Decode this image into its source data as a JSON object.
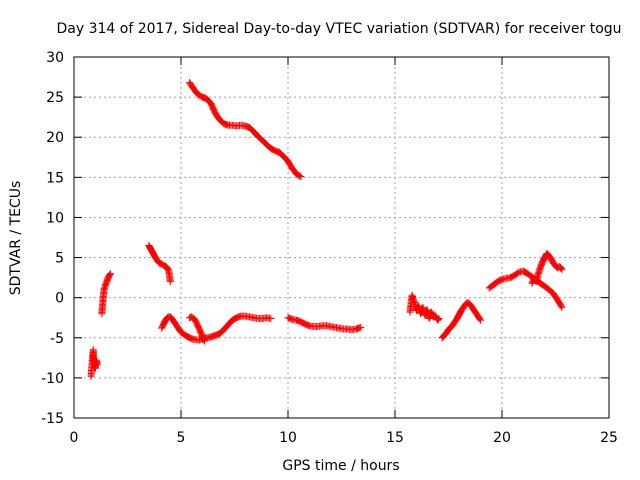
{
  "chart_data": {
    "type": "scatter",
    "title": "Day 314 of 2017, Sidereal Day-to-day VTEC variation (SDTVAR) for receiver togu",
    "xlabel": "GPS time / hours",
    "ylabel": "SDTVAR / TECUs",
    "xlim": [
      0,
      25
    ],
    "ylim": [
      -15,
      30
    ],
    "xticks": [
      0,
      5,
      10,
      15,
      20,
      25
    ],
    "yticks": [
      -15,
      -10,
      -5,
      0,
      5,
      10,
      15,
      20,
      25,
      30
    ],
    "grid": true,
    "marker": "+",
    "series_color": "#ff0000",
    "segments": [
      {
        "name": "seg-1",
        "x": [
          0.8,
          0.85,
          0.9,
          0.95,
          1.0,
          1.05,
          1.1
        ],
        "y": [
          -9.8,
          -8.0,
          -6.5,
          -8.5,
          -8.8,
          -7.8,
          -8.3
        ]
      },
      {
        "name": "seg-2",
        "x": [
          1.3,
          1.35,
          1.4,
          1.5,
          1.6,
          1.7
        ],
        "y": [
          -2.0,
          -0.5,
          1.0,
          1.8,
          2.5,
          3.0
        ]
      },
      {
        "name": "seg-3",
        "x": [
          3.5,
          3.6,
          3.7,
          3.8,
          3.9,
          4.0,
          4.1,
          4.2,
          4.3,
          4.4,
          4.45,
          4.5
        ],
        "y": [
          6.5,
          6.0,
          5.5,
          5.0,
          4.6,
          4.3,
          4.2,
          4.0,
          3.9,
          3.5,
          3.0,
          2.0
        ]
      },
      {
        "name": "seg-4",
        "x": [
          4.1,
          4.2,
          4.3,
          4.4,
          4.5,
          4.6,
          4.7,
          4.8,
          4.9,
          5.0,
          5.2,
          5.4,
          5.6,
          5.8,
          6.0,
          6.2,
          6.4,
          6.6,
          6.8,
          7.0,
          7.2,
          7.4,
          7.6,
          7.8,
          8.0,
          8.2,
          8.4,
          8.6,
          8.8,
          9.0,
          9.2
        ],
        "y": [
          -3.8,
          -3.2,
          -2.7,
          -2.4,
          -2.4,
          -2.7,
          -3.1,
          -3.5,
          -3.9,
          -4.3,
          -4.7,
          -5.0,
          -5.2,
          -5.3,
          -5.2,
          -5.0,
          -4.9,
          -4.7,
          -4.5,
          -4.0,
          -3.4,
          -2.8,
          -2.5,
          -2.3,
          -2.3,
          -2.4,
          -2.5,
          -2.6,
          -2.6,
          -2.5,
          -2.6
        ]
      },
      {
        "name": "seg-5",
        "x": [
          5.4,
          5.5,
          5.6,
          5.7,
          5.8,
          5.9,
          6.0,
          6.1
        ],
        "y": [
          -2.5,
          -2.4,
          -2.6,
          -3.0,
          -3.6,
          -4.2,
          -4.8,
          -5.4
        ]
      },
      {
        "name": "seg-6",
        "x": [
          5.4,
          5.6,
          5.8,
          6.0,
          6.2,
          6.4,
          6.6,
          6.8,
          7.0,
          7.2,
          7.4,
          7.6,
          7.8,
          8.0,
          8.2,
          8.4,
          8.6,
          8.8,
          9.0,
          9.2,
          9.4,
          9.6,
          9.8,
          10.0,
          10.2,
          10.4,
          10.6
        ],
        "y": [
          26.8,
          26.0,
          25.3,
          25.0,
          24.8,
          24.2,
          23.0,
          22.2,
          21.7,
          21.5,
          21.5,
          21.4,
          21.5,
          21.4,
          21.2,
          20.7,
          20.1,
          19.6,
          19.1,
          18.6,
          18.3,
          18.1,
          17.6,
          17.0,
          16.1,
          15.4,
          15.1
        ]
      },
      {
        "name": "seg-7",
        "x": [
          10.0,
          10.2,
          10.4,
          10.6,
          10.8,
          11.0,
          11.2,
          11.4,
          11.6,
          11.8,
          12.0,
          12.2,
          12.4,
          12.6,
          12.8,
          13.0,
          13.2,
          13.4
        ],
        "y": [
          -2.5,
          -2.7,
          -2.8,
          -3.0,
          -3.3,
          -3.5,
          -3.6,
          -3.6,
          -3.5,
          -3.5,
          -3.6,
          -3.7,
          -3.8,
          -3.9,
          -3.9,
          -4.0,
          -3.9,
          -3.7
        ]
      },
      {
        "name": "seg-8",
        "x": [
          15.7,
          15.8,
          15.9,
          16.0,
          16.1,
          16.2,
          16.3,
          16.4,
          16.5,
          16.6,
          16.7,
          16.8,
          16.9,
          17.0,
          17.05
        ],
        "y": [
          -1.8,
          0.3,
          -0.6,
          -1.6,
          -1.0,
          -2.0,
          -1.2,
          -2.2,
          -1.5,
          -2.6,
          -1.8,
          -2.4,
          -2.3,
          -2.8,
          -2.6
        ]
      },
      {
        "name": "seg-9",
        "x": [
          17.2,
          17.3,
          17.4,
          17.5,
          17.6,
          17.7,
          17.8,
          17.9,
          18.0,
          18.1,
          18.2,
          18.3,
          18.4,
          18.5,
          18.6,
          18.7,
          18.8,
          18.9,
          19.0
        ],
        "y": [
          -5.0,
          -4.7,
          -4.4,
          -4.0,
          -3.7,
          -3.4,
          -3.0,
          -2.6,
          -2.1,
          -1.6,
          -1.2,
          -0.8,
          -0.6,
          -0.8,
          -1.2,
          -1.6,
          -2.0,
          -2.4,
          -2.8
        ]
      },
      {
        "name": "seg-10",
        "x": [
          19.4,
          19.6,
          19.8,
          20.0,
          20.2,
          20.4,
          20.6,
          20.8,
          21.0,
          21.2,
          21.4,
          21.6,
          21.8,
          22.0,
          22.2,
          22.4,
          22.6,
          22.8
        ],
        "y": [
          1.2,
          1.6,
          2.0,
          2.3,
          2.4,
          2.5,
          2.8,
          3.2,
          3.3,
          3.0,
          2.6,
          2.2,
          1.8,
          1.4,
          1.0,
          0.5,
          -0.3,
          -1.2
        ]
      },
      {
        "name": "seg-11",
        "x": [
          21.4,
          21.5,
          21.6,
          21.7,
          21.8,
          21.9,
          22.0,
          22.1,
          22.2,
          22.3,
          22.4,
          22.5,
          22.6,
          22.7,
          22.8
        ],
        "y": [
          1.8,
          2.4,
          2.0,
          3.0,
          3.8,
          4.5,
          5.0,
          5.5,
          5.2,
          4.8,
          4.3,
          4.0,
          3.7,
          3.9,
          3.5
        ]
      }
    ]
  }
}
